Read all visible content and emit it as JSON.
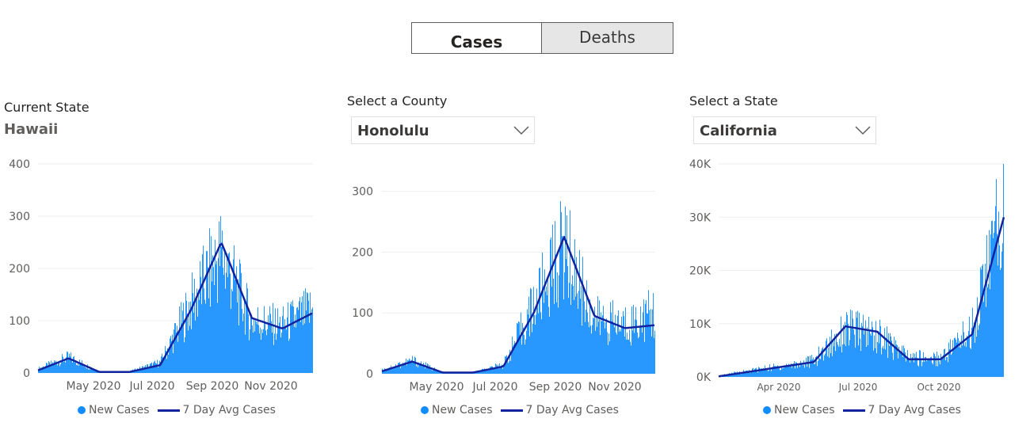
{
  "tabs": {
    "cases_label": "Cases",
    "deaths_label": "Deaths",
    "selected": "Cases"
  },
  "panels": [
    {
      "heading": "Current State",
      "value": "Hawaii"
    },
    {
      "heading": "Select a County",
      "value": "Honolulu"
    },
    {
      "heading": "Select a State",
      "value": "California"
    }
  ],
  "legend": {
    "bar_label": "New Cases",
    "line_label": "7 Day Avg Cases"
  },
  "colors": {
    "bars": "#118dff",
    "avg_line": "#12239e",
    "grid": "#eeeeee",
    "axis_text": "#605e5c"
  },
  "chart_data": [
    {
      "type": "bar",
      "title": "",
      "x_tick_labels": [
        "May 2020",
        "Jul 2020",
        "Sep 2020",
        "Nov 2020"
      ],
      "y_tick_labels": [
        "0",
        "100",
        "200",
        "300",
        "400"
      ],
      "ylim": [
        0,
        400
      ],
      "x_range": [
        "Mar 2020",
        "Dec 2020"
      ],
      "grid": true,
      "legend_position": "bottom-center",
      "series": [
        {
          "name": "New Cases",
          "type": "bar",
          "x": [
            "Mar 2020",
            "Apr 2020",
            "May 2020",
            "Jun 2020",
            "Jul 2020",
            "Aug 2020",
            "Sep 2020",
            "Oct 2020",
            "Nov 2020",
            "Dec 2020"
          ],
          "values": [
            8,
            30,
            2,
            3,
            20,
            130,
            230,
            100,
            90,
            120
          ]
        },
        {
          "name": "7 Day Avg Cases",
          "type": "line",
          "x": [
            "Mar 2020",
            "Apr 2020",
            "May 2020",
            "Jun 2020",
            "Jul 2020",
            "Aug 2020",
            "Sep 2020",
            "Oct 2020",
            "Nov 2020",
            "Dec 2020"
          ],
          "values": [
            5,
            28,
            2,
            2,
            15,
            120,
            250,
            105,
            85,
            115
          ]
        }
      ]
    },
    {
      "type": "bar",
      "title": "",
      "x_tick_labels": [
        "May 2020",
        "Jul 2020",
        "Sep 2020",
        "Nov 2020"
      ],
      "y_tick_labels": [
        "0",
        "100",
        "200",
        "300"
      ],
      "ylim": [
        0,
        345
      ],
      "x_range": [
        "Mar 2020",
        "Dec 2020"
      ],
      "grid": true,
      "legend_position": "bottom-center",
      "series": [
        {
          "name": "New Cases",
          "type": "bar",
          "x": [
            "Mar 2020",
            "Apr 2020",
            "May 2020",
            "Jun 2020",
            "Jul 2020",
            "Aug 2020",
            "Sep 2020",
            "Oct 2020",
            "Nov 2020",
            "Dec 2020"
          ],
          "values": [
            6,
            22,
            2,
            2,
            15,
            110,
            210,
            90,
            80,
            100
          ]
        },
        {
          "name": "7 Day Avg Cases",
          "type": "line",
          "x": [
            "Mar 2020",
            "Apr 2020",
            "May 2020",
            "Jun 2020",
            "Jul 2020",
            "Aug 2020",
            "Sep 2020",
            "Oct 2020",
            "Nov 2020",
            "Dec 2020"
          ],
          "values": [
            4,
            20,
            2,
            2,
            12,
            100,
            225,
            95,
            75,
            80
          ]
        }
      ]
    },
    {
      "type": "bar",
      "title": "",
      "x_tick_labels": [
        "Apr 2020",
        "Jul 2020",
        "Oct 2020"
      ],
      "y_tick_labels": [
        "0K",
        "10K",
        "20K",
        "30K",
        "40K"
      ],
      "ylim": [
        0,
        40000
      ],
      "x_range": [
        "Mar 2020",
        "Dec 2020"
      ],
      "grid": true,
      "legend_position": "bottom-center",
      "series": [
        {
          "name": "New Cases",
          "type": "bar",
          "x": [
            "Mar 2020",
            "Apr 2020",
            "May 2020",
            "Jun 2020",
            "Jul 2020",
            "Aug 2020",
            "Sep 2020",
            "Oct 2020",
            "Nov 2020",
            "Dec 2020"
          ],
          "values": [
            200,
            1200,
            2000,
            3000,
            9000,
            8000,
            3500,
            3500,
            9000,
            32000
          ]
        },
        {
          "name": "7 Day Avg Cases",
          "type": "line",
          "x": [
            "Mar 2020",
            "Apr 2020",
            "May 2020",
            "Jun 2020",
            "Jul 2020",
            "Aug 2020",
            "Sep 2020",
            "Oct 2020",
            "Nov 2020",
            "Dec 2020"
          ],
          "values": [
            100,
            1000,
            1900,
            2800,
            9500,
            8500,
            3300,
            3300,
            8000,
            30000
          ]
        }
      ]
    }
  ]
}
